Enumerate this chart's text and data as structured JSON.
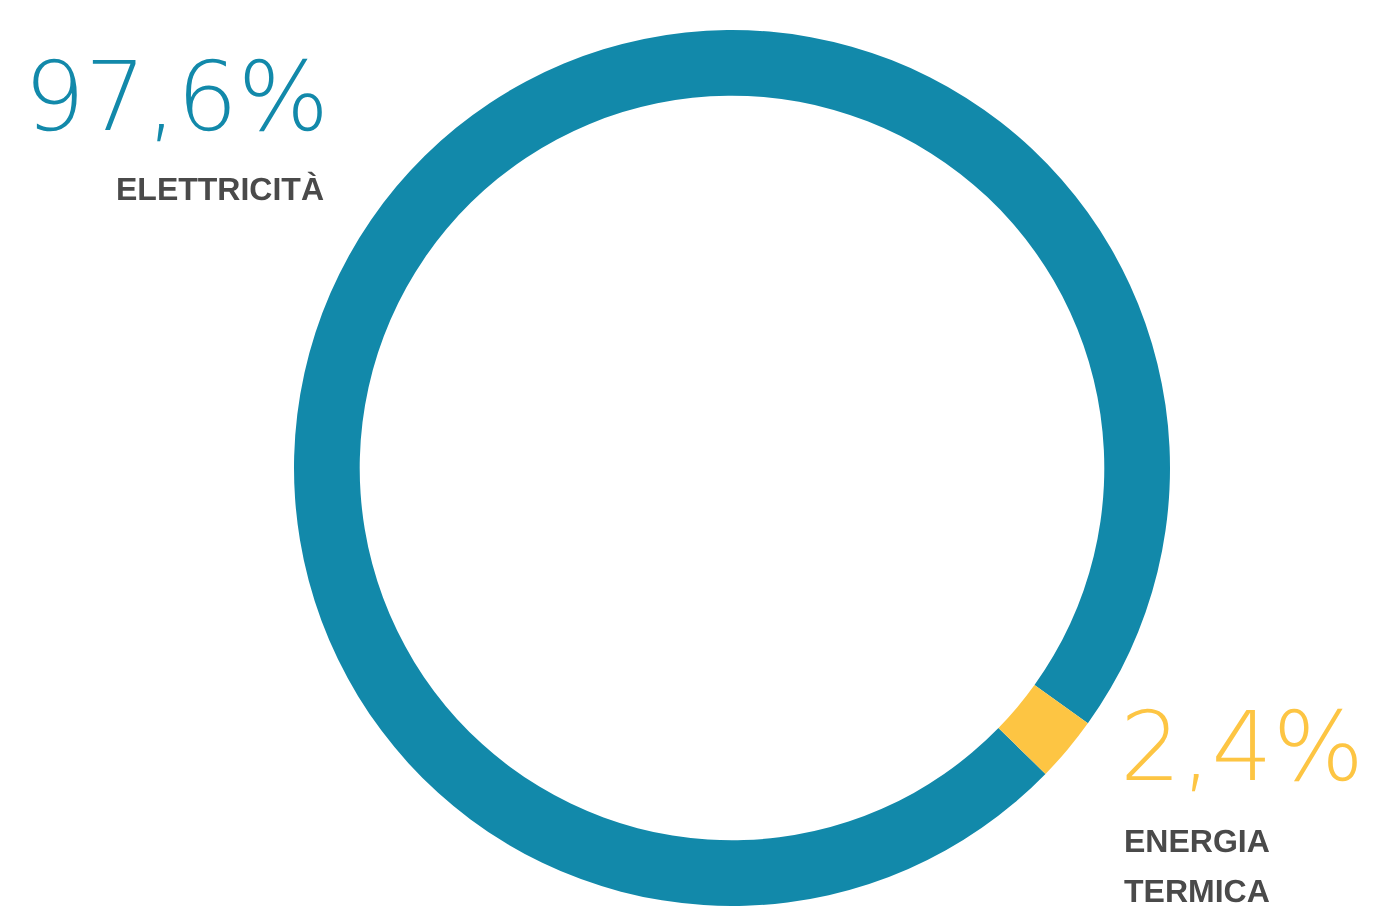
{
  "chart_data": {
    "type": "donut",
    "categories": [
      "ELETTRICITÀ",
      "ENERGIA TERMICA"
    ],
    "values": [
      97.6,
      2.4
    ],
    "colors": [
      "#1289aa",
      "#fdc543"
    ],
    "value_labels": [
      "97,6%",
      "2,4%"
    ],
    "legend": false
  }
}
